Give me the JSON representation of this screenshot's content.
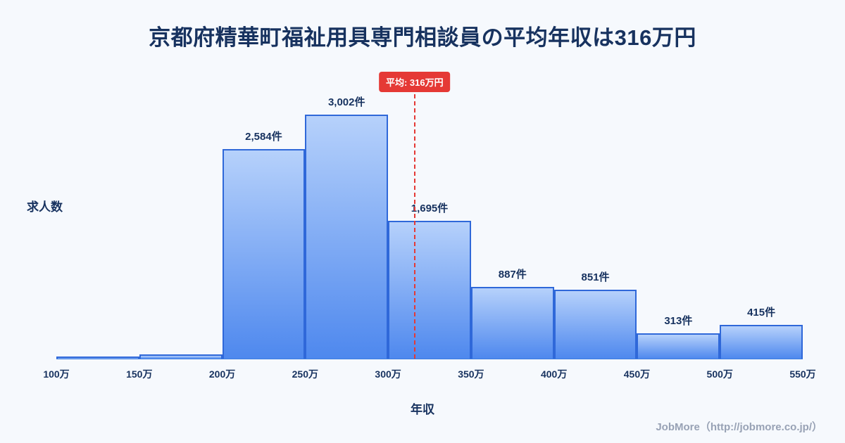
{
  "title": "京都府精華町福祉用具専門相談員の平均年収は316万円",
  "footer": {
    "credit": "JobMore（http://jobmore.co.jp/）"
  },
  "colors": {
    "background": "#f6f9fd",
    "title_text": "#17325f",
    "bar_gradient_top": "#b6d1fb",
    "bar_gradient_bottom": "#4e88ee",
    "bar_border": "#2f68d9",
    "axis_line": "#3e7ee0",
    "average_red": "#e53935",
    "footer_gray": "#98a2b5"
  },
  "chart_data": {
    "type": "bar",
    "title": "京都府精華町福祉用具専門相談員の平均年収は316万円",
    "xlabel": "年収",
    "ylabel": "求人数",
    "bin_edges": [
      100,
      150,
      200,
      250,
      300,
      350,
      400,
      450,
      500,
      550
    ],
    "x_ticks": [
      "100万",
      "150万",
      "200万",
      "250万",
      "300万",
      "350万",
      "400万",
      "450万",
      "500万",
      "550万"
    ],
    "values": [
      25,
      55,
      2584,
      3002,
      1695,
      887,
      851,
      313,
      415
    ],
    "labels": [
      "",
      "",
      "2,584件",
      "3,002件",
      "1,695件",
      "887件",
      "851件",
      "313件",
      "415件"
    ],
    "ylim": [
      0,
      3550
    ],
    "grid": false,
    "legend": "none",
    "average": {
      "value": 316,
      "label": "平均: 316万円"
    }
  }
}
